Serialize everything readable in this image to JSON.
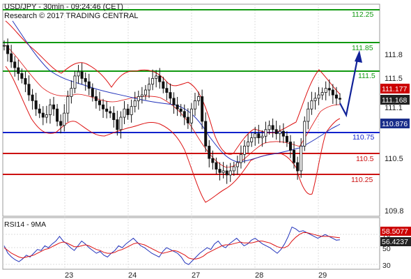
{
  "header": {
    "title": "USD/JPY - 30min - 09:24:46 (CET)",
    "subtitle": "Research © 2017 TRADING CENTRAL"
  },
  "rsi_panel": {
    "label": "RSI14 - 9MA"
  },
  "colors": {
    "price": "#111111",
    "bollinger": "#dd1111",
    "ma": "#2233bb",
    "resistance": "#119911",
    "support": "#cc1111",
    "pivot": "#1122cc",
    "forecast": "#112299",
    "label_price_red": "#cc0000",
    "label_price_blue": "#1a2e8a",
    "grid": "#cccccc"
  },
  "chart_data": [
    {
      "type": "candlestick",
      "title": "USD/JPY - 30min - 09:24:46 (CET)",
      "x_tick_labels": [
        "23",
        "24",
        "27",
        "28",
        "29"
      ],
      "y_tick_labels": [
        111.8,
        111.5,
        111.1,
        110.5,
        109.8
      ],
      "ylim": [
        109.75,
        112.32
      ],
      "horizontal_levels": [
        {
          "value": 112.25,
          "label": "112.25",
          "kind": "resistance"
        },
        {
          "value": 111.85,
          "label": "111.85",
          "kind": "resistance"
        },
        {
          "value": 111.5,
          "label": "111.5",
          "kind": "resistance"
        },
        {
          "value": 110.75,
          "label": "110.75",
          "kind": "pivot"
        },
        {
          "value": 110.5,
          "label": "110.5",
          "kind": "support"
        },
        {
          "value": 110.25,
          "label": "110.25",
          "kind": "support"
        }
      ],
      "price_badges": [
        {
          "value": 111.177,
          "label": "111.177",
          "style": "red"
        },
        {
          "value": 111.168,
          "label": "111.168",
          "style": "dark"
        },
        {
          "value": 110.876,
          "label": "110.876",
          "style": "blue"
        }
      ],
      "close_series": [
        111.82,
        111.72,
        111.62,
        111.55,
        111.48,
        111.42,
        111.35,
        111.22,
        111.15,
        111.05,
        111.0,
        110.95,
        110.98,
        111.1,
        111.05,
        110.9,
        110.85,
        111.0,
        111.2,
        111.3,
        111.45,
        111.5,
        111.42,
        111.38,
        111.3,
        111.2,
        111.15,
        111.1,
        111.05,
        111.02,
        111.0,
        110.92,
        110.8,
        110.95,
        111.05,
        110.98,
        111.08,
        111.15,
        111.2,
        111.22,
        111.28,
        111.35,
        111.42,
        111.45,
        111.38,
        111.3,
        111.25,
        111.18,
        111.1,
        111.05,
        111.02,
        110.95,
        110.88,
        111.05,
        111.15,
        111.2,
        110.9,
        110.6,
        110.45,
        110.4,
        110.32,
        110.28,
        110.3,
        110.25,
        110.3,
        110.35,
        110.4,
        110.5,
        110.6,
        110.65,
        110.7,
        110.75,
        110.7,
        110.72,
        110.8,
        110.85,
        110.8,
        110.75,
        110.78,
        110.72,
        110.65,
        110.55,
        110.4,
        110.3,
        110.6,
        110.9,
        111.05,
        111.15,
        111.18,
        111.22,
        111.25,
        111.3,
        111.28,
        111.22,
        111.18,
        111.168
      ],
      "forecast_path": [
        111.168,
        111.05,
        111.85
      ]
    },
    {
      "type": "line",
      "title": "RSI14 - 9MA",
      "ylim": [
        25,
        80
      ],
      "y_tick_labels": [
        70,
        50,
        30
      ],
      "badges": [
        {
          "value": 58.5077,
          "label": "58.5077",
          "style": "red"
        },
        {
          "value": 56.4237,
          "label": "56.4237",
          "style": "dark"
        }
      ],
      "series": [
        {
          "name": "RSI14",
          "values": [
            50,
            42,
            38,
            35,
            33,
            36,
            40,
            38,
            42,
            46,
            45,
            50,
            48,
            52,
            55,
            60,
            55,
            52,
            48,
            45,
            50,
            55,
            52,
            48,
            45,
            42,
            44,
            40,
            38,
            42,
            45,
            50,
            48,
            52,
            55,
            58,
            54,
            50,
            48,
            45,
            42,
            40,
            38,
            44,
            48,
            46,
            44,
            42,
            38,
            32,
            30,
            34,
            38,
            42,
            45,
            48,
            46,
            52,
            55,
            50,
            48,
            52,
            55,
            58,
            54,
            50,
            52,
            56,
            58,
            55,
            52,
            50,
            48,
            45,
            42,
            46,
            52,
            60,
            70,
            68,
            65,
            66,
            64,
            62,
            60,
            58,
            60,
            62,
            60,
            58,
            56,
            56.42
          ]
        },
        {
          "values": [
            48,
            45,
            42,
            40,
            38,
            37,
            38,
            39,
            40,
            42,
            44,
            46,
            47,
            49,
            51,
            53,
            54,
            53,
            51,
            49,
            49,
            50,
            51,
            50,
            48,
            46,
            45,
            43,
            42,
            42,
            43,
            45,
            46,
            48,
            50,
            52,
            53,
            52,
            51,
            49,
            47,
            45,
            43,
            42,
            43,
            44,
            45,
            44,
            42,
            40,
            37,
            36,
            36,
            37,
            39,
            42,
            44,
            46,
            48,
            50,
            51,
            51,
            52,
            53,
            54,
            53,
            53,
            53,
            54,
            55,
            55,
            54,
            53,
            51,
            49,
            48,
            48,
            50,
            55,
            59,
            62,
            64,
            64,
            63,
            62,
            61,
            60,
            60,
            60,
            59.5,
            59,
            58.5077
          ]
        }
      ]
    }
  ]
}
